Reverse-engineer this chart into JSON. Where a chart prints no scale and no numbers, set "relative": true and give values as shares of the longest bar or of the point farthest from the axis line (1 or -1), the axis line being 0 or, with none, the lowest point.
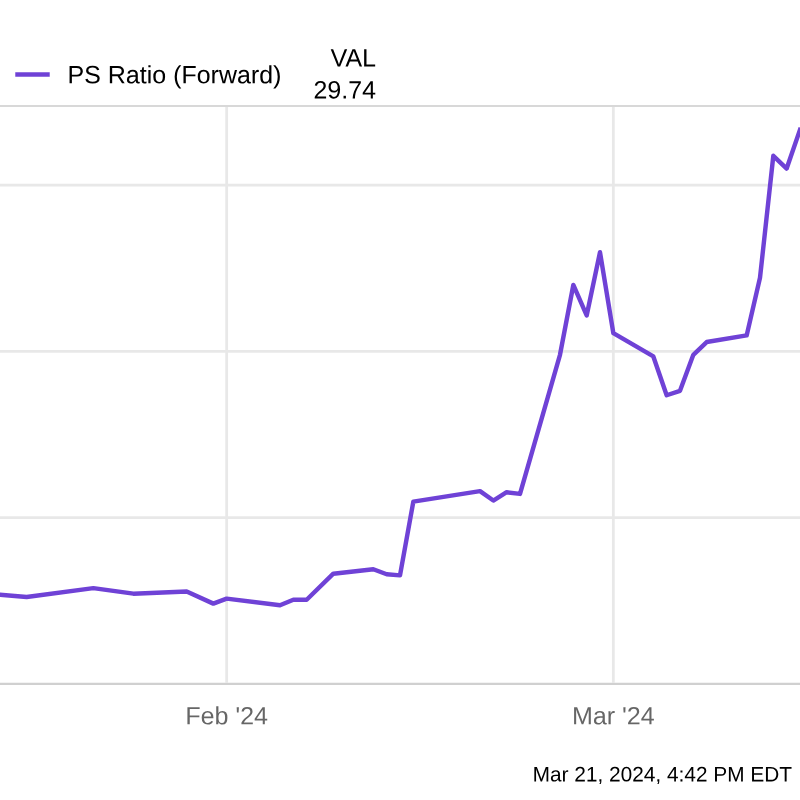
{
  "chart_data": {
    "type": "line",
    "relative": true,
    "x": [
      "2024-01-15",
      "2024-01-17",
      "2024-01-22",
      "2024-01-25",
      "2024-01-29",
      "2024-01-31",
      "2024-02-01",
      "2024-02-05",
      "2024-02-06",
      "2024-02-07",
      "2024-02-09",
      "2024-02-12",
      "2024-02-13",
      "2024-02-14",
      "2024-02-15",
      "2024-02-20",
      "2024-02-21",
      "2024-02-22",
      "2024-02-23",
      "2024-02-26",
      "2024-02-27",
      "2024-02-28",
      "2024-02-29",
      "2024-03-01",
      "2024-03-04",
      "2024-03-05",
      "2024-03-06",
      "2024-03-07",
      "2024-03-08",
      "2024-03-11",
      "2024-03-12",
      "2024-03-13",
      "2024-03-14",
      "2024-03-15"
    ],
    "series": [
      {
        "name": "PS Ratio (Forward)",
        "color": "#6f42d6",
        "values": [
          0.161,
          0.157,
          0.173,
          0.163,
          0.167,
          0.145,
          0.154,
          0.142,
          0.152,
          0.152,
          0.199,
          0.207,
          0.198,
          0.196,
          0.329,
          0.348,
          0.331,
          0.346,
          0.343,
          0.594,
          0.72,
          0.665,
          0.779,
          0.633,
          0.591,
          0.521,
          0.529,
          0.594,
          0.617,
          0.629,
          0.733,
          0.953,
          0.93,
          1
        ]
      }
    ],
    "xlim": [
      "2024-01-15",
      "2024-03-15"
    ],
    "xticks": [
      {
        "value": "2024-02-01",
        "label": "Feb '24"
      },
      {
        "value": "2024-03-01",
        "label": "Mar '24"
      }
    ],
    "tick_labels": "x",
    "grid": true,
    "legend": "top left",
    "marker": "none",
    "line_style": "solid",
    "annotations": [
      "VAL",
      "29.74",
      "Mar 21, 2024, 4:42 PM EDT"
    ]
  }
}
